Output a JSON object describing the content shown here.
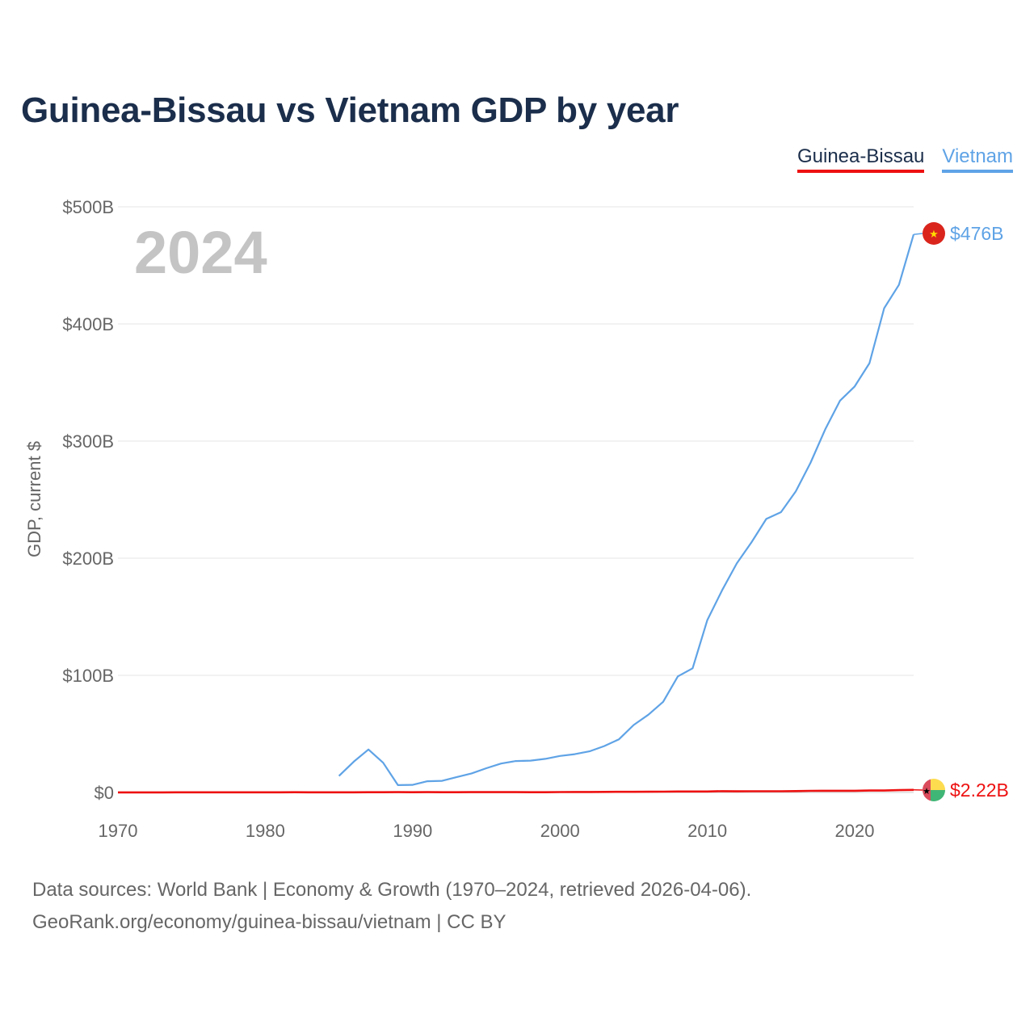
{
  "title": "Guinea-Bissau vs Vietnam GDP by year",
  "legend": {
    "guinea_bissau": "Guinea-Bissau",
    "vietnam": "Vietnam"
  },
  "footer": {
    "line1": "Data sources: World Bank | Economy & Growth (1970–2024, retrieved 2026-04-06).",
    "line2": "GeoRank.org/economy/guinea-bissau/vietnam | CC BY"
  },
  "colors": {
    "guinea_bissau": "#ee1111",
    "vietnam": "#5fa3e6",
    "title": "#1b2e4b",
    "year_watermark": "#c4c4c4"
  },
  "chart_data": {
    "type": "line",
    "title": "Guinea-Bissau vs Vietnam GDP by year",
    "xlabel": "",
    "ylabel": "GDP, current $",
    "xlim": [
      1970,
      2024
    ],
    "ylim": [
      0,
      500
    ],
    "units": "billion current US$",
    "x_ticks": [
      1970,
      1980,
      1990,
      2000,
      2010,
      2020
    ],
    "x_tick_labels": [
      "1970",
      "1980",
      "1990",
      "2000",
      "2010",
      "2020"
    ],
    "y_ticks": [
      0,
      100,
      200,
      300,
      400,
      500
    ],
    "y_tick_labels": [
      "$0",
      "$100B",
      "$200B",
      "$300B",
      "$400B",
      "$500B"
    ],
    "grid": true,
    "legend_position": "top-right",
    "year_watermark": "2024",
    "series": [
      {
        "name": "Guinea-Bissau",
        "color": "#ee1111",
        "end_label": "$2.22B",
        "x": [
          1970,
          1971,
          1972,
          1973,
          1974,
          1975,
          1976,
          1977,
          1978,
          1979,
          1980,
          1981,
          1982,
          1983,
          1984,
          1985,
          1986,
          1987,
          1988,
          1989,
          1990,
          1991,
          1992,
          1993,
          1994,
          1995,
          1996,
          1997,
          1998,
          1999,
          2000,
          2001,
          2002,
          2003,
          2004,
          2005,
          2006,
          2007,
          2008,
          2009,
          2010,
          2011,
          2012,
          2013,
          2014,
          2015,
          2016,
          2017,
          2018,
          2019,
          2020,
          2021,
          2022,
          2023,
          2024
        ],
        "values": [
          0.08,
          0.09,
          0.09,
          0.1,
          0.11,
          0.11,
          0.12,
          0.13,
          0.14,
          0.15,
          0.16,
          0.17,
          0.18,
          0.17,
          0.16,
          0.16,
          0.17,
          0.2,
          0.24,
          0.25,
          0.24,
          0.27,
          0.23,
          0.24,
          0.25,
          0.28,
          0.27,
          0.27,
          0.21,
          0.22,
          0.37,
          0.38,
          0.41,
          0.46,
          0.52,
          0.57,
          0.59,
          0.69,
          0.86,
          0.83,
          0.85,
          1.1,
          0.98,
          1.05,
          1.02,
          1.05,
          1.18,
          1.35,
          1.46,
          1.43,
          1.43,
          1.64,
          1.63,
          1.99,
          2.22
        ]
      },
      {
        "name": "Vietnam",
        "color": "#5fa3e6",
        "end_label": "$476B",
        "x": [
          1985,
          1986,
          1987,
          1988,
          1989,
          1990,
          1991,
          1992,
          1993,
          1994,
          1995,
          1996,
          1997,
          1998,
          1999,
          2000,
          2001,
          2002,
          2003,
          2004,
          2005,
          2006,
          2007,
          2008,
          2009,
          2010,
          2011,
          2012,
          2013,
          2014,
          2015,
          2016,
          2017,
          2018,
          2019,
          2020,
          2021,
          2022,
          2023,
          2024
        ],
        "values": [
          14.1,
          26.3,
          36.7,
          25.4,
          6.3,
          6.5,
          9.6,
          9.9,
          13.2,
          16.3,
          20.7,
          24.7,
          26.8,
          27.2,
          28.7,
          31.2,
          32.7,
          35.1,
          39.6,
          45.4,
          57.6,
          66.4,
          77.4,
          99.1,
          106.0,
          147.2,
          172.6,
          195.6,
          213.7,
          233.5,
          239.3,
          257.1,
          281.4,
          310.1,
          334.4,
          346.6,
          366.5,
          413.4,
          433.4,
          476.4
        ]
      }
    ]
  }
}
